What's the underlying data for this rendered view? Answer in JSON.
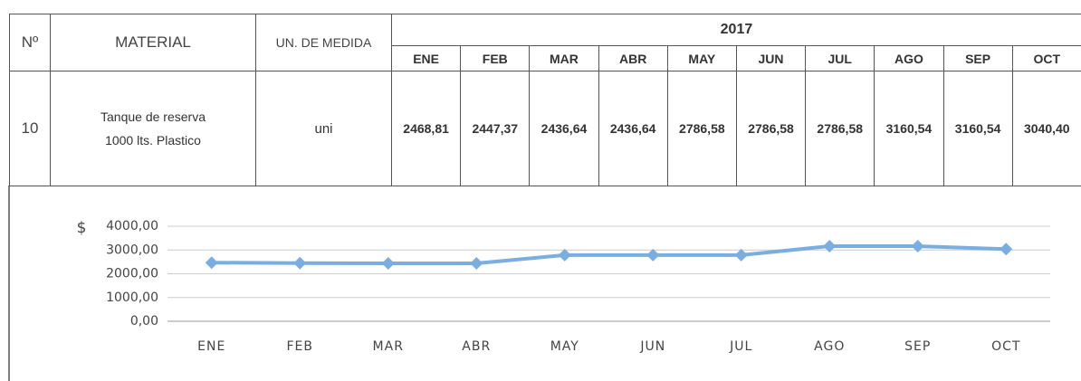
{
  "table": {
    "headers": {
      "number": "Nº",
      "material": "MATERIAL",
      "unit": "UN. DE MEDIDA",
      "year": "2017",
      "months": [
        "ENE",
        "FEB",
        "MAR",
        "ABR",
        "MAY",
        "JUN",
        "JUL",
        "AGO",
        "SEP",
        "OCT"
      ]
    },
    "rows": [
      [
        "10",
        "Tanque de reserva 1000 lts. Plastico",
        "uni",
        "2468,81",
        "2447,37",
        "2436,64",
        "2436,64",
        "2786,58",
        "2786,58",
        "2786,58",
        "3160,54",
        "3160,54",
        "3040,40"
      ]
    ]
  },
  "chart_data": {
    "type": "line",
    "ylabel": "$",
    "categories": [
      "ENE",
      "FEB",
      "MAR",
      "ABR",
      "MAY",
      "JUN",
      "JUL",
      "AGO",
      "SEP",
      "OCT"
    ],
    "series": [
      {
        "color": "#7aaee0",
        "values": [
          2468.81,
          2447.37,
          2436.64,
          2436.64,
          2786.58,
          2786.58,
          2786.58,
          3160.54,
          3160.54,
          3040.4
        ]
      }
    ],
    "ylim": [
      0,
      4000
    ],
    "yticks": [
      {
        "value": 0,
        "label": "0,00"
      },
      {
        "value": 1000,
        "label": "1000,00"
      },
      {
        "value": 2000,
        "label": "2000,00"
      },
      {
        "value": 3000,
        "label": "3000,00"
      },
      {
        "value": 4000,
        "label": "4000,00"
      }
    ],
    "grid": true
  }
}
